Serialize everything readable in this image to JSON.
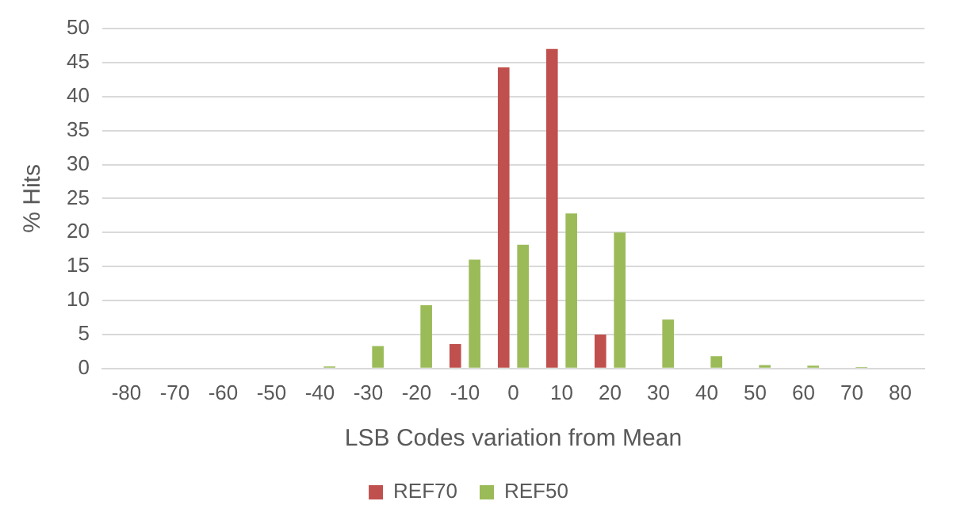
{
  "chart_data": {
    "type": "bar",
    "xlabel": "LSB Codes variation from Mean",
    "ylabel": "% Hits",
    "categories": [
      "-80",
      "-70",
      "-60",
      "-50",
      "-40",
      "-30",
      "-20",
      "-10",
      "0",
      "10",
      "20",
      "30",
      "40",
      "50",
      "60",
      "70",
      "80"
    ],
    "series": [
      {
        "name": "REF70",
        "color": "#c0504d",
        "values": [
          0,
          0,
          0,
          0,
          0,
          0,
          0,
          3.6,
          44.3,
          47,
          5,
          0,
          0,
          0,
          0,
          0,
          0
        ]
      },
      {
        "name": "REF50",
        "color": "#9bbb59",
        "values": [
          0,
          0,
          0,
          0,
          0.3,
          3.3,
          9.3,
          16,
          18.2,
          22.8,
          20,
          7.2,
          1.8,
          0.5,
          0.4,
          0.2,
          0
        ]
      }
    ],
    "ylim": [
      0,
      50
    ],
    "yticks": [
      0,
      5,
      10,
      15,
      20,
      25,
      30,
      35,
      40,
      45,
      50
    ],
    "grid": "y",
    "legend": "bottom"
  }
}
